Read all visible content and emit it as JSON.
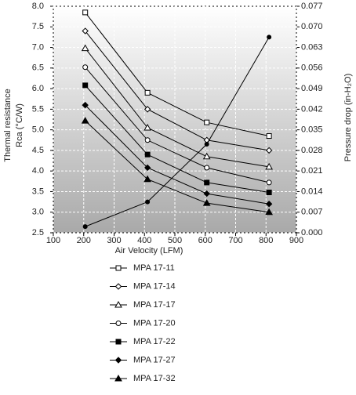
{
  "chart_data": {
    "type": "line",
    "xlabel": "Air Velocity (LFM)",
    "ylabel": [
      "Thermal resistance",
      "Rca (°C/W)"
    ],
    "y2label": "Pressure drop (in-H₂O)",
    "x": [
      205,
      410,
      605,
      810
    ],
    "xlim": [
      100,
      900
    ],
    "xticks": [
      100,
      200,
      300,
      400,
      500,
      600,
      700,
      800,
      900
    ],
    "ylim": [
      2.5,
      8
    ],
    "yticks": [
      2.5,
      {
        "value": 3,
        "label": "3.0"
      },
      3.5,
      {
        "value": 4,
        "label": "4.0"
      },
      4.5,
      {
        "value": 5,
        "label": "5.0"
      },
      5.5,
      {
        "value": 6,
        "label": "6.0"
      },
      6.5,
      {
        "value": 7,
        "label": "7.0"
      },
      7.5,
      {
        "value": 8,
        "label": "8.0"
      }
    ],
    "y2lim": [
      0,
      0.077
    ],
    "y2ticks": [
      {
        "value": 0,
        "label": "0.000"
      },
      0.007,
      0.014,
      0.021,
      0.028,
      0.035,
      0.042,
      0.049,
      0.056,
      0.063,
      {
        "value": 0.07,
        "label": "0.070"
      },
      0.077
    ],
    "grid": true,
    "series": [
      {
        "name": "MPA 17-11",
        "color": "#000000",
        "marker": "square",
        "filled": false,
        "values": [
          7.85,
          5.9,
          5.18,
          4.85
        ]
      },
      {
        "name": "MPA 17-14",
        "color": "#000000",
        "marker": "diamond",
        "filled": false,
        "values": [
          7.4,
          5.5,
          4.75,
          4.5
        ]
      },
      {
        "name": "MPA 17-17",
        "color": "#000000",
        "marker": "triangle",
        "filled": false,
        "values": [
          6.98,
          5.05,
          4.35,
          4.1
        ]
      },
      {
        "name": "MPA 17-20",
        "color": "#000000",
        "marker": "circle",
        "filled": false,
        "values": [
          6.52,
          4.75,
          4.08,
          3.72
        ]
      },
      {
        "name": "MPA 17-22",
        "color": "#000000",
        "marker": "square",
        "filled": true,
        "values": [
          6.08,
          4.4,
          3.72,
          3.48
        ]
      },
      {
        "name": "MPA 17-27",
        "color": "#000000",
        "marker": "diamond",
        "filled": true,
        "values": [
          5.6,
          4.08,
          3.45,
          3.2
        ]
      },
      {
        "name": "MPA 17-32",
        "color": "#000000",
        "marker": "triangle",
        "filled": true,
        "values": [
          5.22,
          3.8,
          3.22,
          3.0
        ]
      },
      {
        "color": "#000000",
        "marker": "circle",
        "filled": true,
        "axis": "y2",
        "values": [
          0.0021,
          0.0105,
          0.0301,
          0.0665
        ]
      }
    ]
  }
}
